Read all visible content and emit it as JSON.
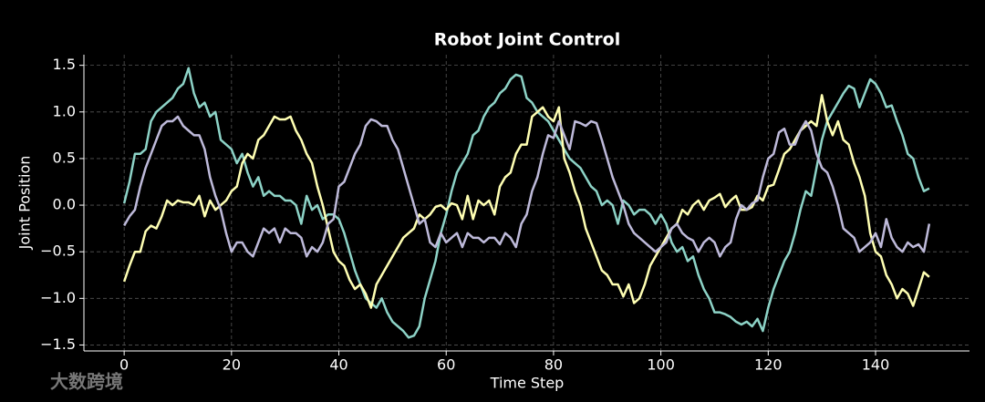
{
  "chart_data": {
    "type": "line",
    "title": "Robot Joint Control",
    "xlabel": "Time Step",
    "ylabel": "Joint Position",
    "watermark": "大数跨境",
    "x": [
      0,
      1,
      2,
      3,
      4,
      5,
      6,
      7,
      8,
      9,
      10,
      11,
      12,
      13,
      14,
      15,
      16,
      17,
      18,
      19,
      20,
      21,
      22,
      23,
      24,
      25,
      26,
      27,
      28,
      29,
      30,
      31,
      32,
      33,
      34,
      35,
      36,
      37,
      38,
      39,
      40,
      41,
      42,
      43,
      44,
      45,
      46,
      47,
      48,
      49,
      50,
      51,
      52,
      53,
      54,
      55,
      56,
      57,
      58,
      59,
      60,
      61,
      62,
      63,
      64,
      65,
      66,
      67,
      68,
      69,
      70,
      71,
      72,
      73,
      74,
      75,
      76,
      77,
      78,
      79,
      80,
      81,
      82,
      83,
      84,
      85,
      86,
      87,
      88,
      89,
      90,
      91,
      92,
      93,
      94,
      95,
      96,
      97,
      98,
      99,
      100,
      101,
      102,
      103,
      104,
      105,
      106,
      107,
      108,
      109,
      110,
      111,
      112,
      113,
      114,
      115,
      116,
      117,
      118,
      119,
      120,
      121,
      122,
      123,
      124,
      125,
      126,
      127,
      128,
      129,
      130,
      131,
      132,
      133,
      134,
      135,
      136,
      137,
      138,
      139,
      140,
      141,
      142,
      143,
      144,
      145,
      146,
      147,
      148,
      149,
      150
    ],
    "series": [
      {
        "color": "#8dd3c7",
        "values": [
          0.02,
          0.25,
          0.55,
          0.55,
          0.6,
          0.9,
          1.0,
          1.05,
          1.1,
          1.15,
          1.25,
          1.3,
          1.47,
          1.2,
          1.05,
          1.1,
          0.95,
          1.0,
          0.7,
          0.65,
          0.6,
          0.45,
          0.55,
          0.35,
          0.2,
          0.3,
          0.1,
          0.15,
          0.1,
          0.1,
          0.05,
          0.05,
          0.0,
          -0.2,
          0.1,
          -0.05,
          0.0,
          -0.15,
          -0.1,
          -0.1,
          -0.15,
          -0.3,
          -0.5,
          -0.7,
          -0.85,
          -1.0,
          -1.05,
          -1.1,
          -1.0,
          -1.15,
          -1.25,
          -1.3,
          -1.35,
          -1.42,
          -1.4,
          -1.3,
          -1.0,
          -0.8,
          -0.6,
          -0.3,
          -0.1,
          0.15,
          0.35,
          0.45,
          0.55,
          0.75,
          0.8,
          0.95,
          1.05,
          1.1,
          1.2,
          1.25,
          1.35,
          1.4,
          1.38,
          1.15,
          1.1,
          1.0,
          0.95,
          0.9,
          0.8,
          0.7,
          0.6,
          0.5,
          0.45,
          0.4,
          0.3,
          0.2,
          0.15,
          0.0,
          0.05,
          0.0,
          -0.2,
          0.05,
          0.0,
          -0.1,
          -0.05,
          -0.05,
          -0.1,
          -0.2,
          -0.1,
          -0.2,
          -0.4,
          -0.5,
          -0.45,
          -0.6,
          -0.55,
          -0.75,
          -0.9,
          -1.0,
          -1.15,
          -1.15,
          -1.17,
          -1.2,
          -1.25,
          -1.28,
          -1.25,
          -1.3,
          -1.22,
          -1.35,
          -1.1,
          -0.9,
          -0.75,
          -0.6,
          -0.5,
          -0.3,
          -0.05,
          0.15,
          0.1,
          0.4,
          0.7,
          0.9,
          1.0,
          1.1,
          1.2,
          1.28,
          1.25,
          1.05,
          1.2,
          1.35,
          1.3,
          1.2,
          1.05,
          1.07,
          0.9,
          0.75,
          0.55,
          0.5,
          0.3,
          0.15,
          0.18
        ]
      },
      {
        "color": "#ffffb3",
        "values": [
          -0.82,
          -0.65,
          -0.5,
          -0.5,
          -0.28,
          -0.22,
          -0.25,
          -0.12,
          0.05,
          0.0,
          0.05,
          0.03,
          0.03,
          0.0,
          0.1,
          -0.12,
          0.05,
          -0.05,
          0.0,
          0.05,
          0.15,
          0.2,
          0.45,
          0.55,
          0.5,
          0.7,
          0.75,
          0.85,
          0.95,
          0.92,
          0.92,
          0.95,
          0.8,
          0.7,
          0.55,
          0.45,
          0.2,
          0.0,
          -0.25,
          -0.5,
          -0.6,
          -0.65,
          -0.8,
          -0.9,
          -0.85,
          -0.95,
          -1.1,
          -0.85,
          -0.75,
          -0.65,
          -0.55,
          -0.45,
          -0.35,
          -0.3,
          -0.25,
          -0.1,
          -0.15,
          -0.1,
          -0.02,
          0.0,
          -0.05,
          0.02,
          0.0,
          -0.15,
          0.1,
          -0.15,
          0.05,
          0.0,
          0.05,
          -0.1,
          0.2,
          0.3,
          0.35,
          0.55,
          0.65,
          0.65,
          0.95,
          1.0,
          1.05,
          0.95,
          0.9,
          1.05,
          0.5,
          0.35,
          0.15,
          0.0,
          -0.25,
          -0.4,
          -0.55,
          -0.7,
          -0.75,
          -0.85,
          -0.85,
          -0.98,
          -0.85,
          -1.05,
          -1.0,
          -0.85,
          -0.65,
          -0.55,
          -0.45,
          -0.35,
          -0.25,
          -0.2,
          -0.05,
          -0.1,
          0.0,
          0.05,
          -0.05,
          0.05,
          0.08,
          0.12,
          -0.02,
          0.05,
          0.1,
          -0.05,
          -0.05,
          -0.02,
          0.1,
          0.05,
          0.2,
          0.22,
          0.38,
          0.55,
          0.6,
          0.7,
          0.8,
          0.85,
          0.9,
          0.85,
          1.18,
          0.9,
          0.75,
          0.9,
          0.7,
          0.65,
          0.45,
          0.3,
          0.1,
          -0.3,
          -0.5,
          -0.55,
          -0.75,
          -0.85,
          -1.0,
          -0.9,
          -0.95,
          -1.08,
          -0.9,
          -0.72,
          -0.77
        ]
      },
      {
        "color": "#bebada",
        "values": [
          -0.22,
          -0.12,
          -0.05,
          0.2,
          0.4,
          0.55,
          0.7,
          0.85,
          0.9,
          0.9,
          0.95,
          0.85,
          0.8,
          0.75,
          0.75,
          0.6,
          0.3,
          0.1,
          -0.05,
          -0.3,
          -0.5,
          -0.4,
          -0.4,
          -0.5,
          -0.55,
          -0.4,
          -0.25,
          -0.3,
          -0.25,
          -0.4,
          -0.25,
          -0.3,
          -0.3,
          -0.35,
          -0.55,
          -0.45,
          -0.5,
          -0.4,
          -0.2,
          -0.15,
          0.2,
          0.25,
          0.4,
          0.55,
          0.65,
          0.85,
          0.92,
          0.9,
          0.85,
          0.85,
          0.7,
          0.6,
          0.4,
          0.2,
          0.0,
          -0.2,
          -0.15,
          -0.4,
          -0.45,
          -0.3,
          -0.4,
          -0.35,
          -0.3,
          -0.45,
          -0.3,
          -0.35,
          -0.35,
          -0.4,
          -0.35,
          -0.35,
          -0.42,
          -0.3,
          -0.35,
          -0.45,
          -0.2,
          -0.1,
          0.15,
          0.3,
          0.55,
          0.75,
          0.72,
          0.9,
          0.75,
          0.6,
          0.9,
          0.88,
          0.85,
          0.9,
          0.88,
          0.7,
          0.5,
          0.3,
          0.15,
          0.0,
          -0.2,
          -0.3,
          -0.35,
          -0.4,
          -0.45,
          -0.5,
          -0.45,
          -0.4,
          -0.25,
          -0.2,
          -0.3,
          -0.35,
          -0.38,
          -0.5,
          -0.4,
          -0.35,
          -0.4,
          -0.55,
          -0.45,
          -0.4,
          -0.15,
          0.0,
          -0.05,
          0.02,
          0.05,
          0.3,
          0.5,
          0.55,
          0.78,
          0.82,
          0.65,
          0.65,
          0.8,
          0.9,
          0.8,
          0.55,
          0.4,
          0.35,
          0.2,
          0.0,
          -0.25,
          -0.3,
          -0.35,
          -0.5,
          -0.45,
          -0.4,
          -0.3,
          -0.45,
          -0.15,
          -0.35,
          -0.45,
          -0.5,
          -0.4,
          -0.45,
          -0.42,
          -0.5,
          -0.2
        ]
      }
    ],
    "xlim": [
      -7.5,
      157.5
    ],
    "ylim": [
      -1.564,
      1.614
    ],
    "xticks": [
      0,
      20,
      40,
      60,
      80,
      100,
      120,
      140
    ],
    "yticks": [
      {
        "value": -1.5,
        "label": "−1.5"
      },
      {
        "value": -1,
        "label": "−1.0"
      },
      {
        "value": -0.5,
        "label": "−0.5"
      },
      {
        "value": 0,
        "label": "0.0"
      },
      0.5,
      {
        "value": 1,
        "label": "1.0"
      },
      1.5
    ],
    "grid": true
  }
}
